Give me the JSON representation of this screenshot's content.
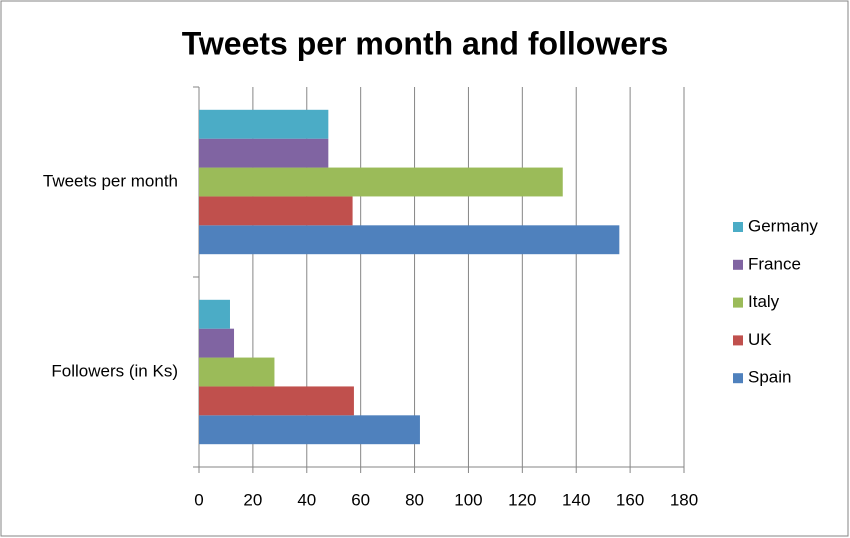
{
  "chart_data": {
    "type": "hbar",
    "title": "Tweets per month and followers",
    "categories": [
      "Tweets per month",
      "Followers (in Ks)"
    ],
    "series": [
      {
        "name": "Spain",
        "color": "#4f81bd",
        "values": [
          156,
          82
        ]
      },
      {
        "name": "UK",
        "color": "#c0504d",
        "values": [
          57,
          57.5
        ]
      },
      {
        "name": "Italy",
        "color": "#9bbb59",
        "values": [
          135,
          28
        ]
      },
      {
        "name": "France",
        "color": "#8064a2",
        "values": [
          48,
          13
        ]
      },
      {
        "name": "Germany",
        "color": "#4bacc6",
        "values": [
          48,
          11.5
        ]
      }
    ],
    "xlim": [
      0,
      180
    ],
    "xticks": [
      0,
      20,
      40,
      60,
      80,
      100,
      120,
      140,
      160,
      180
    ],
    "grid": true,
    "legend": "right"
  }
}
